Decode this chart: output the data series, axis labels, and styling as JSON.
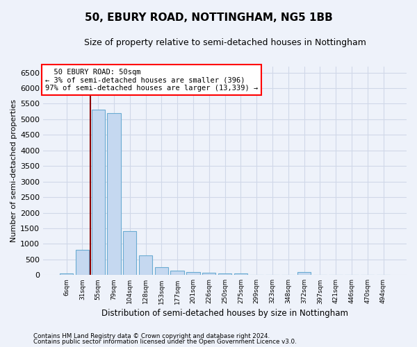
{
  "title": "50, EBURY ROAD, NOTTINGHAM, NG5 1BB",
  "subtitle": "Size of property relative to semi-detached houses in Nottingham",
  "xlabel": "Distribution of semi-detached houses by size in Nottingham",
  "ylabel": "Number of semi-detached properties",
  "bar_color": "#c5d8f0",
  "bar_edge_color": "#6aabd2",
  "annotation_line_color": "#8b0000",
  "background_color": "#eef2fa",
  "grid_color": "#d0d8e8",
  "categories": [
    "6sqm",
    "31sqm",
    "55sqm",
    "79sqm",
    "104sqm",
    "128sqm",
    "153sqm",
    "177sqm",
    "201sqm",
    "226sqm",
    "250sqm",
    "275sqm",
    "299sqm",
    "323sqm",
    "348sqm",
    "372sqm",
    "397sqm",
    "421sqm",
    "446sqm",
    "470sqm",
    "494sqm"
  ],
  "values": [
    50,
    800,
    5300,
    5200,
    1400,
    630,
    250,
    130,
    90,
    70,
    60,
    60,
    0,
    0,
    0,
    90,
    0,
    0,
    0,
    0,
    0
  ],
  "property_label": "50 EBURY ROAD: 50sqm",
  "pct_smaller": 3,
  "n_smaller": 396,
  "pct_larger": 97,
  "n_larger": 13339,
  "red_line_x": 1.5,
  "ylim": [
    0,
    6700
  ],
  "yticks": [
    0,
    500,
    1000,
    1500,
    2000,
    2500,
    3000,
    3500,
    4000,
    4500,
    5000,
    5500,
    6000,
    6500
  ],
  "footer_line1": "Contains HM Land Registry data © Crown copyright and database right 2024.",
  "footer_line2": "Contains public sector information licensed under the Open Government Licence v3.0."
}
